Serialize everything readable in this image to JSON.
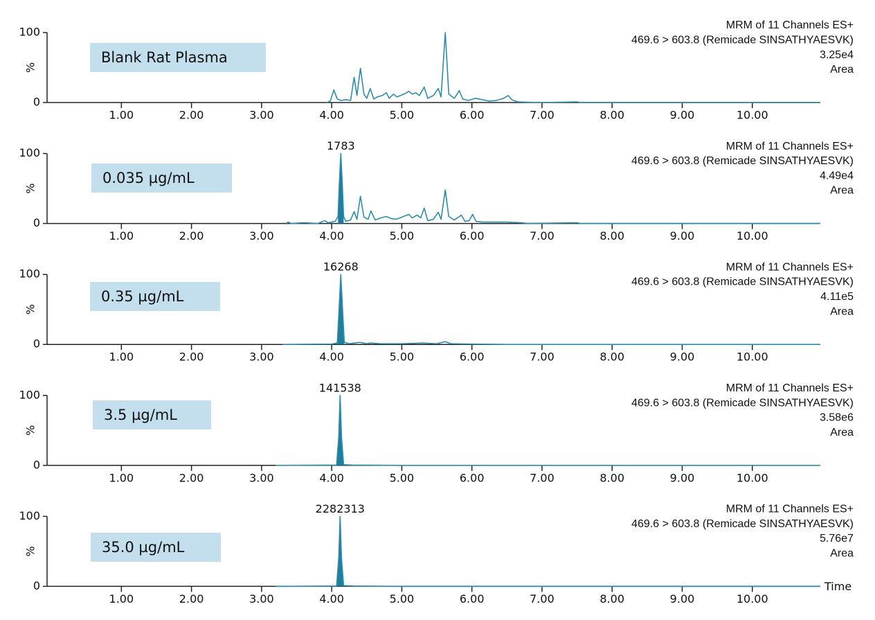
{
  "chart_data": [
    {
      "type": "line",
      "sample": "Blank Rat Plasma",
      "header": [
        "MRM of 11 Channels ES+",
        "469.6 > 603.8 (Remicade SINSATHYAESVK)",
        "3.25e4",
        "Area"
      ],
      "ylabel": "%",
      "color": "#2e8cab",
      "xlim": [
        -0.06,
        10.97
      ],
      "ylim": [
        0,
        100
      ],
      "yticks": [
        0,
        100
      ],
      "xticks": [
        {
          "value": 1,
          "label": "1.00"
        },
        {
          "value": 2,
          "label": "2.00"
        },
        {
          "value": 3,
          "label": "3.00"
        },
        {
          "value": 4,
          "label": "4.00"
        },
        {
          "value": 5,
          "label": "5.00"
        },
        {
          "value": 6,
          "label": "6.00"
        },
        {
          "value": 7,
          "label": "7.00"
        },
        {
          "value": 8,
          "label": "8.00"
        },
        {
          "value": 9,
          "label": "9.00"
        },
        {
          "value": 10,
          "label": "10.00"
        }
      ],
      "x": [
        3.93,
        3.98,
        4.03,
        4.08,
        4.13,
        4.2,
        4.27,
        4.32,
        4.36,
        4.41,
        4.46,
        4.5,
        4.55,
        4.6,
        4.65,
        4.72,
        4.78,
        4.82,
        4.88,
        4.93,
        4.98,
        5.05,
        5.1,
        5.15,
        5.2,
        5.25,
        5.32,
        5.37,
        5.45,
        5.52,
        5.56,
        5.62,
        5.67,
        5.75,
        5.82,
        5.87,
        5.95,
        6.05,
        6.15,
        6.25,
        6.35,
        6.45,
        6.52,
        6.57,
        6.65,
        6.8,
        7.0,
        7.5,
        7.55,
        8.0,
        10.97
      ],
      "values": [
        0,
        2,
        18,
        5,
        3,
        4,
        3,
        36,
        10,
        49,
        12,
        6,
        20,
        5,
        8,
        10,
        14,
        6,
        12,
        8,
        10,
        13,
        16,
        12,
        14,
        10,
        22,
        6,
        10,
        20,
        8,
        100,
        12,
        6,
        17,
        5,
        3,
        6,
        4,
        2,
        3,
        6,
        10,
        4,
        1,
        0.5,
        0,
        1,
        0,
        0,
        0
      ]
    },
    {
      "type": "line",
      "sample": "0.035 µg/mL",
      "header": [
        "MRM of 11 Channels ES+",
        "469.6 > 603.8 (Remicade SINSATHYAESVK)",
        "4.49e4",
        "Area"
      ],
      "ylabel": "%",
      "color": "#2e8cab",
      "fill_color": "#1f7d9e",
      "peak_label": 1783,
      "peak_x": 4.13,
      "fill_x": [
        4.09,
        4.17
      ],
      "xlim": [
        -0.06,
        10.97
      ],
      "ylim": [
        0,
        100
      ],
      "yticks": [
        0,
        100
      ],
      "xticks": [
        {
          "value": 1,
          "label": "1.00"
        },
        {
          "value": 2,
          "label": "2.00"
        },
        {
          "value": 3,
          "label": "3.00"
        },
        {
          "value": 4,
          "label": "4.00"
        },
        {
          "value": 5,
          "label": "5.00"
        },
        {
          "value": 6,
          "label": "6.00"
        },
        {
          "value": 7,
          "label": "7.00"
        },
        {
          "value": 8,
          "label": "8.00"
        },
        {
          "value": 9,
          "label": "9.00"
        },
        {
          "value": 10,
          "label": "10.00"
        }
      ],
      "x": [
        3.35,
        3.38,
        3.42,
        3.6,
        3.8,
        3.9,
        3.95,
        4.0,
        4.05,
        4.09,
        4.11,
        4.13,
        4.15,
        4.17,
        4.2,
        4.27,
        4.32,
        4.36,
        4.41,
        4.46,
        4.52,
        4.56,
        4.62,
        4.7,
        4.78,
        4.85,
        4.92,
        5.0,
        5.1,
        5.15,
        5.22,
        5.27,
        5.32,
        5.37,
        5.45,
        5.52,
        5.56,
        5.62,
        5.67,
        5.75,
        5.85,
        5.9,
        5.96,
        6.01,
        6.06,
        6.15,
        6.3,
        6.5,
        6.7,
        6.8,
        7.5,
        7.55,
        10.97
      ],
      "values": [
        0,
        2,
        0,
        1,
        0,
        4,
        1,
        2,
        3,
        10,
        60,
        100,
        60,
        10,
        3,
        5,
        17,
        6,
        39,
        9,
        6,
        18,
        5,
        8,
        10,
        7,
        6,
        9,
        13,
        8,
        12,
        8,
        22,
        4,
        6,
        16,
        6,
        48,
        10,
        5,
        12,
        3,
        4,
        13,
        3,
        2,
        2,
        2,
        1,
        0,
        1,
        0,
        0
      ]
    },
    {
      "type": "line",
      "sample": "0.35 µg/mL",
      "header": [
        "MRM of 11 Channels ES+",
        "469.6 > 603.8 (Remicade SINSATHYAESVK)",
        "4.11e5",
        "Area"
      ],
      "ylabel": "%",
      "color": "#2e8cab",
      "fill_color": "#1f7d9e",
      "peak_label": 16268,
      "peak_x": 4.13,
      "fill_x": [
        4.08,
        4.18
      ],
      "xlim": [
        -0.06,
        10.97
      ],
      "ylim": [
        0,
        100
      ],
      "yticks": [
        0,
        100
      ],
      "xticks": [
        {
          "value": 1,
          "label": "1.00"
        },
        {
          "value": 2,
          "label": "2.00"
        },
        {
          "value": 3,
          "label": "3.00"
        },
        {
          "value": 4,
          "label": "4.00"
        },
        {
          "value": 5,
          "label": "5.00"
        },
        {
          "value": 6,
          "label": "6.00"
        },
        {
          "value": 7,
          "label": "7.00"
        },
        {
          "value": 8,
          "label": "8.00"
        },
        {
          "value": 9,
          "label": "9.00"
        },
        {
          "value": 10,
          "label": "10.00"
        }
      ],
      "x": [
        3.3,
        4.0,
        4.08,
        4.1,
        4.13,
        4.16,
        4.18,
        4.25,
        4.32,
        4.4,
        4.5,
        4.55,
        4.7,
        5.0,
        5.3,
        5.5,
        5.62,
        5.7,
        6.0,
        6.5,
        10.97
      ],
      "values": [
        0,
        0.5,
        2,
        40,
        100,
        40,
        3,
        1,
        2,
        3,
        1,
        2,
        1,
        1,
        2,
        1,
        4,
        1,
        0.5,
        0,
        0
      ]
    },
    {
      "type": "line",
      "sample": "3.5 µg/mL",
      "header": [
        "MRM of 11 Channels ES+",
        "469.6 > 603.8 (Remicade SINSATHYAESVK)",
        "3.58e6",
        "Area"
      ],
      "ylabel": "%",
      "color": "#2e8cab",
      "fill_color": "#1f7d9e",
      "peak_label": 141538,
      "peak_x": 4.12,
      "fill_x": [
        4.07,
        4.17
      ],
      "xlim": [
        -0.06,
        10.97
      ],
      "ylim": [
        0,
        100
      ],
      "yticks": [
        0,
        100
      ],
      "xticks": [
        {
          "value": 1,
          "label": "1.00"
        },
        {
          "value": 2,
          "label": "2.00"
        },
        {
          "value": 3,
          "label": "3.00"
        },
        {
          "value": 4,
          "label": "4.00"
        },
        {
          "value": 5,
          "label": "5.00"
        },
        {
          "value": 6,
          "label": "6.00"
        },
        {
          "value": 7,
          "label": "7.00"
        },
        {
          "value": 8,
          "label": "8.00"
        },
        {
          "value": 9,
          "label": "9.00"
        },
        {
          "value": 10,
          "label": "10.00"
        }
      ],
      "x": [
        3.2,
        4.07,
        4.1,
        4.12,
        4.14,
        4.17,
        4.3,
        5.0,
        10.97
      ],
      "values": [
        0,
        0.5,
        40,
        100,
        40,
        1,
        0.5,
        0,
        0
      ]
    },
    {
      "type": "line",
      "sample": "35.0 µg/mL",
      "header": [
        "MRM of 11 Channels ES+",
        "469.6 > 603.8 (Remicade SINSATHYAESVK)",
        "5.76e7",
        "Area"
      ],
      "ylabel": "%",
      "xlabel": "Time",
      "color": "#2e8cab",
      "fill_color": "#1f7d9e",
      "peak_label": 2282313,
      "peak_x": 4.12,
      "fill_x": [
        4.07,
        4.17
      ],
      "xlim": [
        -0.06,
        10.97
      ],
      "ylim": [
        0,
        100
      ],
      "yticks": [
        0,
        100
      ],
      "xticks": [
        {
          "value": 1,
          "label": "1.00"
        },
        {
          "value": 2,
          "label": "2.00"
        },
        {
          "value": 3,
          "label": "3.00"
        },
        {
          "value": 4,
          "label": "4.00"
        },
        {
          "value": 5,
          "label": "5.00"
        },
        {
          "value": 6,
          "label": "6.00"
        },
        {
          "value": 7,
          "label": "7.00"
        },
        {
          "value": 8,
          "label": "8.00"
        },
        {
          "value": 9,
          "label": "9.00"
        },
        {
          "value": 10,
          "label": "10.00"
        }
      ],
      "x": [
        3.2,
        4.07,
        4.1,
        4.12,
        4.14,
        4.17,
        4.3,
        5.0,
        10.97
      ],
      "values": [
        0,
        0.5,
        40,
        100,
        40,
        1,
        0.5,
        0,
        0
      ]
    }
  ]
}
